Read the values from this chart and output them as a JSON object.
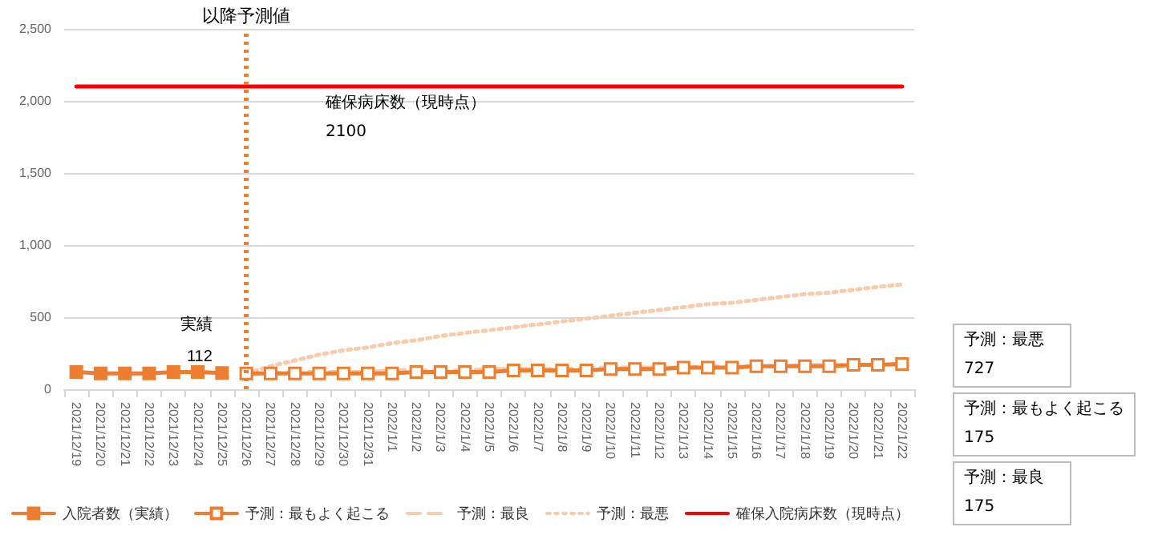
{
  "chart_data": {
    "type": "line",
    "categories": [
      "2021/12/19",
      "2021/12/20",
      "2021/12/21",
      "2021/12/22",
      "2021/12/23",
      "2021/12/24",
      "2021/12/25",
      "2021/12/26",
      "2021/12/27",
      "2021/12/28",
      "2021/12/29",
      "2021/12/30",
      "2021/12/31",
      "2022/1/1",
      "2022/1/2",
      "2022/1/3",
      "2022/1/4",
      "2022/1/5",
      "2022/1/6",
      "2022/1/7",
      "2022/1/8",
      "2022/1/9",
      "2022/1/10",
      "2022/1/11",
      "2022/1/12",
      "2022/1/13",
      "2022/1/14",
      "2022/1/15",
      "2022/1/16",
      "2022/1/17",
      "2022/1/18",
      "2022/1/19",
      "2022/1/20",
      "2022/1/21",
      "2022/1/22"
    ],
    "series": [
      {
        "name": "入院者数（実績）",
        "color": "#ed7d31",
        "marker": "square",
        "line_style": "solid",
        "values": [
          120,
          110,
          110,
          110,
          120,
          120,
          112,
          null,
          null,
          null,
          null,
          null,
          null,
          null,
          null,
          null,
          null,
          null,
          null,
          null,
          null,
          null,
          null,
          null,
          null,
          null,
          null,
          null,
          null,
          null,
          null,
          null,
          null,
          null,
          null
        ]
      },
      {
        "name": "予測：最もよく起こる",
        "color": "#ed7d31",
        "marker": "square",
        "line_style": "solid",
        "values": [
          null,
          null,
          null,
          null,
          null,
          null,
          null,
          110,
          110,
          110,
          110,
          110,
          110,
          110,
          120,
          120,
          120,
          120,
          130,
          130,
          130,
          130,
          140,
          140,
          140,
          150,
          150,
          150,
          160,
          160,
          160,
          160,
          170,
          170,
          175
        ]
      },
      {
        "name": "予測：最良",
        "color": "#f8cbad",
        "marker": "none",
        "line_style": "dashed",
        "values": [
          null,
          null,
          null,
          null,
          null,
          null,
          null,
          110,
          110,
          120,
          120,
          120,
          120,
          130,
          130,
          130,
          130,
          140,
          140,
          140,
          140,
          150,
          150,
          150,
          150,
          150,
          160,
          160,
          160,
          160,
          170,
          170,
          170,
          170,
          175
        ]
      },
      {
        "name": "予測：最悪",
        "color": "#f8cbad",
        "marker": "none",
        "line_style": "dotted",
        "values": [
          null,
          null,
          null,
          null,
          null,
          null,
          null,
          110,
          160,
          200,
          240,
          270,
          290,
          320,
          340,
          370,
          390,
          410,
          430,
          450,
          470,
          490,
          510,
          530,
          550,
          570,
          590,
          600,
          620,
          640,
          660,
          670,
          690,
          710,
          727
        ]
      },
      {
        "name": "確保入院病床数（現時点）",
        "color": "#ff0000",
        "marker": "none",
        "line_style": "solid",
        "values": [
          2100,
          2100,
          2100,
          2100,
          2100,
          2100,
          2100,
          2100,
          2100,
          2100,
          2100,
          2100,
          2100,
          2100,
          2100,
          2100,
          2100,
          2100,
          2100,
          2100,
          2100,
          2100,
          2100,
          2100,
          2100,
          2100,
          2100,
          2100,
          2100,
          2100,
          2100,
          2100,
          2100,
          2100,
          2100
        ]
      }
    ],
    "ylim": [
      0,
      2500
    ],
    "yticks": [
      {
        "value": 0,
        "label": "0"
      },
      {
        "value": 500,
        "label": "500"
      },
      {
        "value": 1000,
        "label": "1,000"
      },
      {
        "value": 1500,
        "label": "1,500"
      },
      {
        "value": 2000,
        "label": "2,000"
      },
      {
        "value": 2500,
        "label": "2,500"
      }
    ],
    "grid": "y",
    "legend": "bottom",
    "ref_lines": [
      {
        "axis": "x",
        "value": "2021/12/26",
        "label": "以降予測値",
        "color": "#ed7d31",
        "line_style": "dotted"
      }
    ],
    "annotations": [
      {
        "text": "実績\n112",
        "x": "2021/12/25",
        "y": 112
      },
      "確保病床数（現時点）\n2100",
      "予測：最悪\n727",
      "予測：最もよく起こる\n175",
      "予測：最良\n175"
    ]
  }
}
